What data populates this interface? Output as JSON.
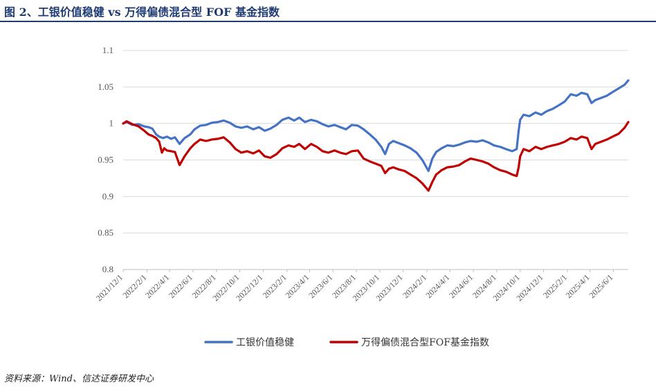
{
  "header": {
    "title": "图 2、工银价值稳健 vs 万得偏债混合型 FOF 基金指数"
  },
  "footer": {
    "source": "资料来源：Wind、信达证券研发中心"
  },
  "chart_data": {
    "type": "line",
    "title": "图 2、工银价值稳健 vs 万得偏债混合型 FOF 基金指数",
    "xlabel": "",
    "ylabel": "",
    "ylim": [
      0.8,
      1.1
    ],
    "yticks": [
      "0.8",
      "0.85",
      "0.9",
      "0.95",
      "1",
      "1.05",
      "1.1"
    ],
    "x_range": [
      "2021-12-01",
      "2025-07-10"
    ],
    "xticks": [
      "2021/12/1",
      "2022/2/1",
      "2022/4/1",
      "2022/6/1",
      "2022/8/1",
      "2022/10/1",
      "2022/12/1",
      "2023/2/1",
      "2023/4/1",
      "2023/6/1",
      "2023/8/1",
      "2023/10/1",
      "2023/12/1",
      "2024/2/1",
      "2024/4/1",
      "2024/6/1",
      "2024/8/1",
      "2024/10/1",
      "2024/12/1",
      "2025/2/1",
      "2025/4/1",
      "2025/6/1"
    ],
    "grid": "horizontal",
    "legend": "bottom",
    "series": [
      {
        "name": "工银价值稳健",
        "color": "#4472c4",
        "points": [
          [
            "2021-12-01",
            1.0
          ],
          [
            "2021-12-10",
            1.002
          ],
          [
            "2021-12-25",
            0.998
          ],
          [
            "2022-01-10",
            0.999
          ],
          [
            "2022-01-25",
            0.996
          ],
          [
            "2022-02-05",
            0.995
          ],
          [
            "2022-02-15",
            0.993
          ],
          [
            "2022-02-25",
            0.985
          ],
          [
            "2022-03-05",
            0.982
          ],
          [
            "2022-03-15",
            0.98
          ],
          [
            "2022-03-25",
            0.982
          ],
          [
            "2022-04-05",
            0.979
          ],
          [
            "2022-04-15",
            0.981
          ],
          [
            "2022-04-27",
            0.972
          ],
          [
            "2022-05-10",
            0.98
          ],
          [
            "2022-05-25",
            0.985
          ],
          [
            "2022-06-05",
            0.992
          ],
          [
            "2022-06-20",
            0.997
          ],
          [
            "2022-07-05",
            0.998
          ],
          [
            "2022-07-20",
            1.001
          ],
          [
            "2022-08-05",
            1.002
          ],
          [
            "2022-08-20",
            1.004
          ],
          [
            "2022-09-05",
            1.001
          ],
          [
            "2022-09-20",
            0.996
          ],
          [
            "2022-10-05",
            0.994
          ],
          [
            "2022-10-20",
            0.996
          ],
          [
            "2022-11-05",
            0.992
          ],
          [
            "2022-11-20",
            0.995
          ],
          [
            "2022-12-05",
            0.99
          ],
          [
            "2022-12-20",
            0.993
          ],
          [
            "2023-01-05",
            0.998
          ],
          [
            "2023-01-20",
            1.005
          ],
          [
            "2023-02-05",
            1.008
          ],
          [
            "2023-02-20",
            1.004
          ],
          [
            "2023-03-05",
            1.008
          ],
          [
            "2023-03-20",
            1.002
          ],
          [
            "2023-04-05",
            1.005
          ],
          [
            "2023-04-20",
            1.003
          ],
          [
            "2023-05-05",
            0.999
          ],
          [
            "2023-05-20",
            0.996
          ],
          [
            "2023-06-05",
            0.998
          ],
          [
            "2023-06-20",
            0.995
          ],
          [
            "2023-07-05",
            0.992
          ],
          [
            "2023-07-20",
            0.998
          ],
          [
            "2023-08-05",
            0.997
          ],
          [
            "2023-08-20",
            0.992
          ],
          [
            "2023-09-05",
            0.985
          ],
          [
            "2023-09-20",
            0.978
          ],
          [
            "2023-10-05",
            0.968
          ],
          [
            "2023-10-15",
            0.958
          ],
          [
            "2023-10-25",
            0.972
          ],
          [
            "2023-11-05",
            0.976
          ],
          [
            "2023-11-20",
            0.973
          ],
          [
            "2023-12-05",
            0.97
          ],
          [
            "2023-12-20",
            0.966
          ],
          [
            "2024-01-05",
            0.96
          ],
          [
            "2024-01-20",
            0.95
          ],
          [
            "2024-02-05",
            0.935
          ],
          [
            "2024-02-15",
            0.952
          ],
          [
            "2024-02-25",
            0.961
          ],
          [
            "2024-03-10",
            0.966
          ],
          [
            "2024-03-25",
            0.97
          ],
          [
            "2024-04-10",
            0.969
          ],
          [
            "2024-04-25",
            0.971
          ],
          [
            "2024-05-10",
            0.974
          ],
          [
            "2024-05-25",
            0.976
          ],
          [
            "2024-06-10",
            0.975
          ],
          [
            "2024-06-25",
            0.977
          ],
          [
            "2024-07-10",
            0.974
          ],
          [
            "2024-07-25",
            0.97
          ],
          [
            "2024-08-10",
            0.968
          ],
          [
            "2024-08-25",
            0.965
          ],
          [
            "2024-09-10",
            0.962
          ],
          [
            "2024-09-22",
            0.965
          ],
          [
            "2024-09-27",
            0.99
          ],
          [
            "2024-10-01",
            1.005
          ],
          [
            "2024-10-10",
            1.012
          ],
          [
            "2024-10-25",
            1.01
          ],
          [
            "2024-11-10",
            1.015
          ],
          [
            "2024-11-25",
            1.012
          ],
          [
            "2024-12-10",
            1.017
          ],
          [
            "2024-12-25",
            1.02
          ],
          [
            "2025-01-10",
            1.025
          ],
          [
            "2025-01-25",
            1.03
          ],
          [
            "2025-02-10",
            1.04
          ],
          [
            "2025-02-25",
            1.038
          ],
          [
            "2025-03-10",
            1.042
          ],
          [
            "2025-03-25",
            1.04
          ],
          [
            "2025-04-05",
            1.028
          ],
          [
            "2025-04-15",
            1.032
          ],
          [
            "2025-04-30",
            1.035
          ],
          [
            "2025-05-15",
            1.038
          ],
          [
            "2025-05-30",
            1.043
          ],
          [
            "2025-06-15",
            1.048
          ],
          [
            "2025-06-30",
            1.053
          ],
          [
            "2025-07-10",
            1.059
          ]
        ]
      },
      {
        "name": "万得偏债混合型FOF基金指数",
        "color": "#c00000",
        "points": [
          [
            "2021-12-01",
            1.0
          ],
          [
            "2021-12-10",
            1.003
          ],
          [
            "2021-12-25",
            0.999
          ],
          [
            "2022-01-10",
            0.996
          ],
          [
            "2022-01-25",
            0.99
          ],
          [
            "2022-02-05",
            0.985
          ],
          [
            "2022-02-15",
            0.983
          ],
          [
            "2022-02-25",
            0.98
          ],
          [
            "2022-03-05",
            0.975
          ],
          [
            "2022-03-12",
            0.96
          ],
          [
            "2022-03-18",
            0.966
          ],
          [
            "2022-03-25",
            0.963
          ],
          [
            "2022-04-05",
            0.962
          ],
          [
            "2022-04-15",
            0.961
          ],
          [
            "2022-04-27",
            0.943
          ],
          [
            "2022-05-10",
            0.955
          ],
          [
            "2022-05-25",
            0.966
          ],
          [
            "2022-06-05",
            0.972
          ],
          [
            "2022-06-20",
            0.978
          ],
          [
            "2022-07-05",
            0.976
          ],
          [
            "2022-07-20",
            0.978
          ],
          [
            "2022-08-05",
            0.979
          ],
          [
            "2022-08-20",
            0.981
          ],
          [
            "2022-09-05",
            0.974
          ],
          [
            "2022-09-20",
            0.965
          ],
          [
            "2022-10-05",
            0.96
          ],
          [
            "2022-10-20",
            0.962
          ],
          [
            "2022-11-05",
            0.959
          ],
          [
            "2022-11-20",
            0.963
          ],
          [
            "2022-12-05",
            0.955
          ],
          [
            "2022-12-20",
            0.953
          ],
          [
            "2023-01-05",
            0.958
          ],
          [
            "2023-01-20",
            0.966
          ],
          [
            "2023-02-05",
            0.97
          ],
          [
            "2023-02-20",
            0.968
          ],
          [
            "2023-03-05",
            0.972
          ],
          [
            "2023-03-20",
            0.965
          ],
          [
            "2023-04-05",
            0.972
          ],
          [
            "2023-04-20",
            0.968
          ],
          [
            "2023-05-05",
            0.962
          ],
          [
            "2023-05-20",
            0.96
          ],
          [
            "2023-06-05",
            0.963
          ],
          [
            "2023-06-20",
            0.96
          ],
          [
            "2023-07-05",
            0.958
          ],
          [
            "2023-07-20",
            0.962
          ],
          [
            "2023-08-05",
            0.963
          ],
          [
            "2023-08-20",
            0.952
          ],
          [
            "2023-09-05",
            0.948
          ],
          [
            "2023-09-20",
            0.945
          ],
          [
            "2023-10-05",
            0.942
          ],
          [
            "2023-10-15",
            0.932
          ],
          [
            "2023-10-25",
            0.938
          ],
          [
            "2023-11-05",
            0.94
          ],
          [
            "2023-11-20",
            0.937
          ],
          [
            "2023-12-05",
            0.935
          ],
          [
            "2023-12-20",
            0.93
          ],
          [
            "2024-01-05",
            0.925
          ],
          [
            "2024-01-20",
            0.918
          ],
          [
            "2024-02-05",
            0.908
          ],
          [
            "2024-02-15",
            0.92
          ],
          [
            "2024-02-25",
            0.93
          ],
          [
            "2024-03-10",
            0.936
          ],
          [
            "2024-03-25",
            0.94
          ],
          [
            "2024-04-10",
            0.941
          ],
          [
            "2024-04-25",
            0.943
          ],
          [
            "2024-05-10",
            0.948
          ],
          [
            "2024-05-25",
            0.952
          ],
          [
            "2024-06-10",
            0.95
          ],
          [
            "2024-06-25",
            0.948
          ],
          [
            "2024-07-10",
            0.945
          ],
          [
            "2024-07-25",
            0.94
          ],
          [
            "2024-08-10",
            0.936
          ],
          [
            "2024-08-25",
            0.934
          ],
          [
            "2024-09-10",
            0.93
          ],
          [
            "2024-09-22",
            0.928
          ],
          [
            "2024-09-27",
            0.94
          ],
          [
            "2024-10-01",
            0.955
          ],
          [
            "2024-10-10",
            0.965
          ],
          [
            "2024-10-25",
            0.962
          ],
          [
            "2024-11-10",
            0.968
          ],
          [
            "2024-11-25",
            0.965
          ],
          [
            "2024-12-10",
            0.968
          ],
          [
            "2024-12-25",
            0.97
          ],
          [
            "2025-01-10",
            0.972
          ],
          [
            "2025-01-25",
            0.975
          ],
          [
            "2025-02-10",
            0.98
          ],
          [
            "2025-02-25",
            0.978
          ],
          [
            "2025-03-10",
            0.982
          ],
          [
            "2025-03-25",
            0.98
          ],
          [
            "2025-04-05",
            0.965
          ],
          [
            "2025-04-15",
            0.972
          ],
          [
            "2025-04-30",
            0.975
          ],
          [
            "2025-05-15",
            0.978
          ],
          [
            "2025-05-30",
            0.982
          ],
          [
            "2025-06-15",
            0.986
          ],
          [
            "2025-06-30",
            0.994
          ],
          [
            "2025-07-10",
            1.002
          ]
        ]
      }
    ]
  }
}
